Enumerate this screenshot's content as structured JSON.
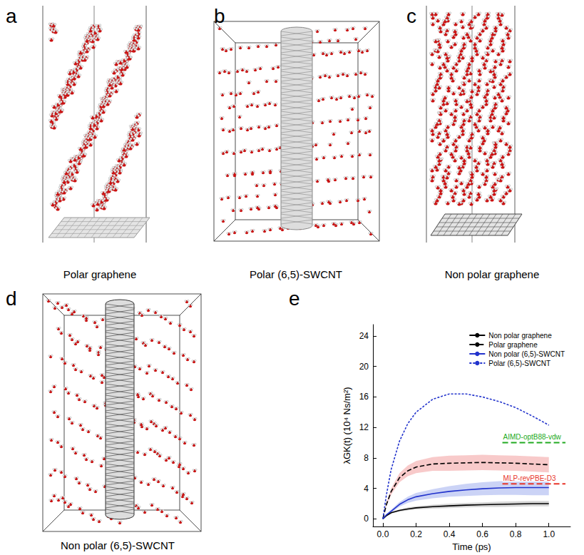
{
  "panels": [
    {
      "letter": "a",
      "caption": "Polar graphene"
    },
    {
      "letter": "b",
      "caption": "Polar (6,5)-SWCNT"
    },
    {
      "letter": "c",
      "caption": "Non polar graphene"
    },
    {
      "letter": "d",
      "caption": "Non polar (6,5)-SWCNT"
    },
    {
      "letter": "e"
    }
  ],
  "chart_data": {
    "type": "line",
    "x_label": "Time (ps)",
    "y_label": "λGK(t) (10⁴ Ns/m²)",
    "x": [
      0,
      0.02,
      0.05,
      0.1,
      0.15,
      0.2,
      0.3,
      0.4,
      0.5,
      0.6,
      0.7,
      0.8,
      0.9,
      1.0
    ],
    "xlim": [
      -0.06,
      1.13
    ],
    "xticks": [
      {
        "value": 0,
        "label": "0.0"
      },
      {
        "value": 0.2,
        "label": "0.2"
      },
      {
        "value": 0.4,
        "label": "0.4"
      },
      {
        "value": 0.6,
        "label": "0.6"
      },
      {
        "value": 0.8,
        "label": "0.8"
      },
      {
        "value": 1.0,
        "label": "1.0"
      }
    ],
    "ylim": [
      -1,
      25.5
    ],
    "yticks": [
      0,
      4,
      8,
      12,
      16,
      20,
      24
    ],
    "grid": false,
    "legend": "upper right",
    "series": [
      {
        "name": "Non polar graphene",
        "color": "#000000",
        "line_style": "solid",
        "values": [
          0,
          0.4,
          0.8,
          1.1,
          1.3,
          1.45,
          1.6,
          1.7,
          1.8,
          1.85,
          1.9,
          1.95,
          2.0,
          2.0
        ],
        "error": [
          0,
          0.05,
          0.1,
          0.15,
          0.2,
          0.2,
          0.25,
          0.3,
          0.3,
          0.3,
          0.35,
          0.35,
          0.35,
          0.35
        ]
      },
      {
        "name": "Polar graphene",
        "color": "#000000",
        "line_style": "dashed",
        "values": [
          0,
          1.8,
          3.6,
          5.4,
          6.3,
          6.8,
          7.2,
          7.3,
          7.35,
          7.4,
          7.35,
          7.3,
          7.2,
          7.1
        ],
        "error": [
          0,
          0.2,
          0.4,
          0.6,
          0.7,
          0.8,
          0.9,
          1.0,
          1.0,
          1.0,
          1.0,
          1.0,
          1.0,
          1.0
        ]
      },
      {
        "name": "Non polar (6,5)-SWCNT",
        "color": "#2233cc",
        "line_style": "solid",
        "values": [
          0,
          0.5,
          1.0,
          1.9,
          2.5,
          2.9,
          3.3,
          3.6,
          3.8,
          3.95,
          4.05,
          4.1,
          4.1,
          4.1
        ],
        "error": [
          0,
          0.1,
          0.2,
          0.3,
          0.4,
          0.5,
          0.6,
          0.7,
          0.8,
          0.85,
          0.9,
          0.95,
          1.0,
          1.0
        ]
      },
      {
        "name": "Polar (6,5)-SWCNT",
        "color": "#2233cc",
        "line_style": "dotted",
        "values": [
          0,
          3.0,
          6.5,
          10.2,
          12.5,
          14.0,
          15.7,
          16.4,
          16.4,
          16.0,
          15.4,
          14.6,
          13.5,
          12.3
        ]
      }
    ],
    "annotations": [
      {
        "text": "AIMD-optB88-vdw",
        "y": 10,
        "x": [
          0.72,
          1.1
        ],
        "color": "#22aa22",
        "line_style": "dashed"
      },
      {
        "text": "MLP-revPBE-D3",
        "y": 4.6,
        "x": [
          0.72,
          1.1
        ],
        "color": "#e8352a",
        "line_style": "dashed"
      }
    ]
  }
}
